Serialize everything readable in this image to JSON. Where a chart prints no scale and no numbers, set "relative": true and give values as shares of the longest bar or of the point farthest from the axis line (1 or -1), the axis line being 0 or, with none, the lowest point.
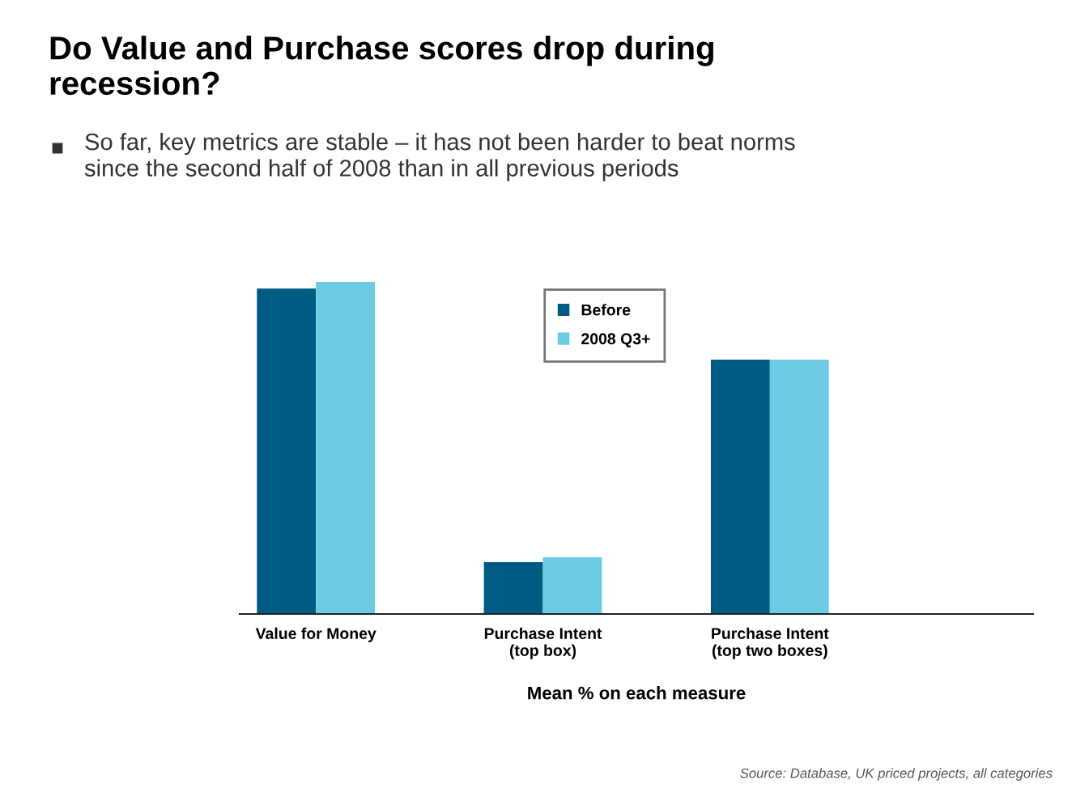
{
  "chart_data": {
    "type": "bar",
    "title": "Do Value and Purchase scores drop during\nrecession?",
    "subtitle": "So far, key metrics are stable – it has not been harder to beat norms\nsince the second half of 2008 than in all previous periods",
    "categories": [
      "Value for Money",
      "Purchase Intent\n(top box)",
      "Purchase Intent\n(top two boxes)"
    ],
    "relative": true,
    "series": [
      {
        "name": "Before",
        "color": "#005b82",
        "values": [
          0.98,
          0.156,
          0.766
        ]
      },
      {
        "name": "2008 Q3+",
        "color": "#6ccbe2",
        "values": [
          1.0,
          0.171,
          0.766
        ]
      }
    ],
    "xlabel": "Mean % on each measure",
    "legend": "top",
    "annotations": [
      "Source: Database, UK priced projects, all categories"
    ]
  }
}
